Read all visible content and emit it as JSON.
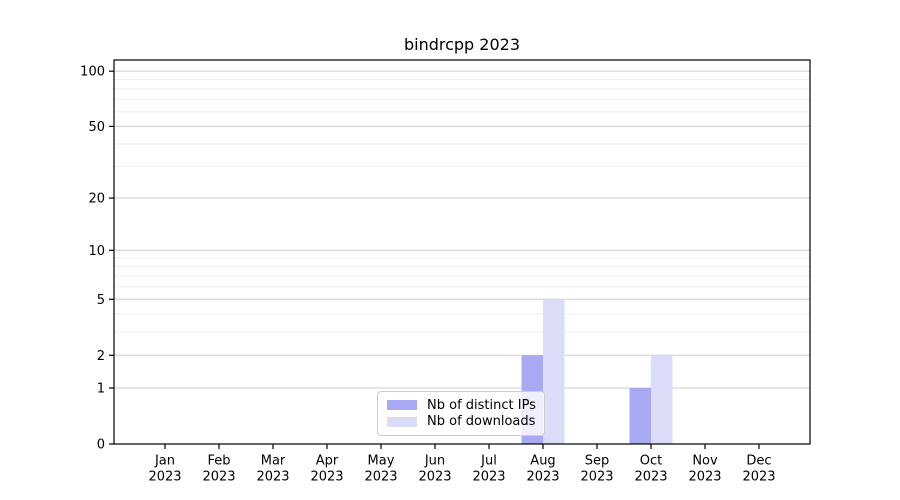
{
  "figure": {
    "title": "bindrcpp 2023"
  },
  "chart_data": {
    "type": "bar",
    "title": "bindrcpp 2023",
    "categories": [
      "Jan 2023",
      "Feb 2023",
      "Mar 2023",
      "Apr 2023",
      "May 2023",
      "Jun 2023",
      "Jul 2023",
      "Aug 2023",
      "Sep 2023",
      "Oct 2023",
      "Nov 2023",
      "Dec 2023"
    ],
    "series": [
      {
        "name": "Nb of distinct IPs",
        "color": "#a8a8f3",
        "values": [
          0,
          0,
          0,
          0,
          0,
          0,
          0,
          2,
          0,
          1,
          0,
          0
        ]
      },
      {
        "name": "Nb of downloads",
        "color": "#dbdcf8",
        "values": [
          0,
          0,
          0,
          0,
          0,
          0,
          0,
          5,
          0,
          2,
          0,
          0
        ]
      }
    ],
    "xlabel": "",
    "ylabel": "",
    "yscale": "log1p",
    "ylim": [
      0,
      115
    ],
    "yticks_major": [
      0,
      1,
      2,
      5,
      10,
      20,
      50,
      100
    ],
    "yticks_minor": [
      3,
      4,
      6,
      7,
      8,
      9,
      30,
      40,
      60,
      70,
      80,
      90
    ],
    "grid": "horizontal",
    "legend_position": "lower center"
  },
  "colors": {
    "grid_major": "#cdcdcd",
    "grid_minor": "#eeeeee",
    "spine": "#000000",
    "legend_border": "#cccccc"
  }
}
